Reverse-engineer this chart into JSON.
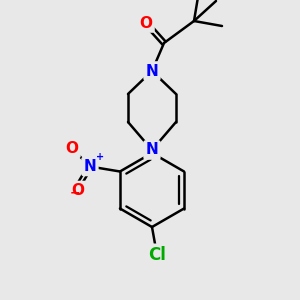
{
  "background_color": "#e8e8e8",
  "bond_color": "#000000",
  "bond_width": 1.8,
  "atom_colors": {
    "O": "#ff0000",
    "N": "#0000ff",
    "Cl": "#00aa00",
    "N+": "#0000ff",
    "O-": "#ff0000",
    "C": "#000000"
  },
  "font_size_atoms": 11,
  "font_size_small": 9
}
